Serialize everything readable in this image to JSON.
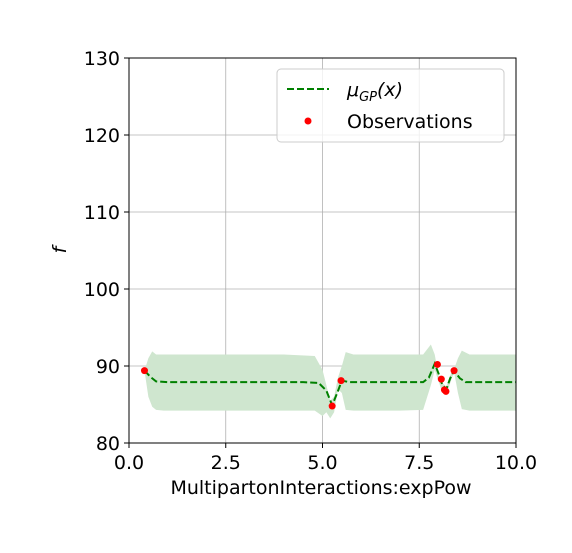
{
  "colors": {
    "mean_line": "#008000",
    "observations": "#ff0000",
    "band": "#cfe6cf",
    "grid": "#b0b0b0",
    "axis": "#000000"
  },
  "chart_data": {
    "type": "line",
    "title": "",
    "xlabel": "MultipartonInteractions:expPow",
    "ylabel": "f",
    "xlim": [
      0.0,
      10.0
    ],
    "ylim": [
      80,
      130
    ],
    "xticks": [
      0.0,
      2.5,
      5.0,
      7.5,
      10.0
    ],
    "xtick_labels": [
      "0.0",
      "2.5",
      "5.0",
      "7.5",
      "10.0"
    ],
    "yticks": [
      80,
      90,
      100,
      110,
      120,
      130
    ],
    "ytick_labels": [
      "80",
      "90",
      "100",
      "110",
      "120",
      "130"
    ],
    "grid": true,
    "legend_position": "top-right",
    "legend": {
      "mean_label_main": "μ",
      "mean_label_sub": "GP",
      "mean_label_tail": "(x)",
      "observations_label": "Observations"
    },
    "mean": {
      "x": [
        0.4,
        0.55,
        0.7,
        1.0,
        2.0,
        3.0,
        4.0,
        4.5,
        4.9,
        5.1,
        5.25,
        5.38,
        5.5,
        5.7,
        6.0,
        7.0,
        7.6,
        7.75,
        7.9,
        8.0,
        8.1,
        8.2,
        8.3,
        8.4,
        8.55,
        8.7,
        9.0,
        10.0
      ],
      "y": [
        89.4,
        88.6,
        88.0,
        87.9,
        87.9,
        87.9,
        87.9,
        87.9,
        87.8,
        86.8,
        84.9,
        86.5,
        88.1,
        87.9,
        87.9,
        87.9,
        87.9,
        88.5,
        90.3,
        89.0,
        87.5,
        87.0,
        88.4,
        89.4,
        88.4,
        87.9,
        87.9,
        87.9
      ]
    },
    "band": {
      "x": [
        0.4,
        0.5,
        0.6,
        0.7,
        0.9,
        2.0,
        4.0,
        4.8,
        5.0,
        5.1,
        5.2,
        5.3,
        5.4,
        5.5,
        5.6,
        5.8,
        7.0,
        7.6,
        7.8,
        7.9,
        8.0,
        8.1,
        8.2,
        8.3,
        8.4,
        8.5,
        8.6,
        8.8,
        10.0
      ],
      "upper": [
        89.4,
        91.0,
        91.9,
        91.5,
        91.5,
        91.5,
        91.5,
        91.3,
        89.5,
        87.5,
        85.5,
        86.0,
        88.5,
        90.0,
        91.8,
        91.5,
        91.5,
        91.5,
        92.8,
        91.5,
        88.7,
        87.8,
        87.3,
        88.8,
        89.6,
        91.0,
        92.0,
        91.5,
        91.5
      ],
      "lower": [
        89.4,
        86.0,
        84.7,
        84.3,
        84.2,
        84.2,
        84.2,
        84.2,
        83.5,
        84.0,
        83.2,
        84.0,
        87.0,
        86.5,
        84.3,
        84.2,
        84.2,
        84.3,
        87.5,
        89.5,
        88.0,
        86.5,
        86.2,
        87.8,
        89.2,
        86.5,
        84.4,
        84.2,
        84.2
      ]
    },
    "observations": {
      "x": [
        0.4,
        5.25,
        5.48,
        7.97,
        8.07,
        8.15,
        8.19,
        8.4
      ],
      "y": [
        89.4,
        84.8,
        88.1,
        90.2,
        88.3,
        86.9,
        86.7,
        89.4
      ]
    }
  }
}
